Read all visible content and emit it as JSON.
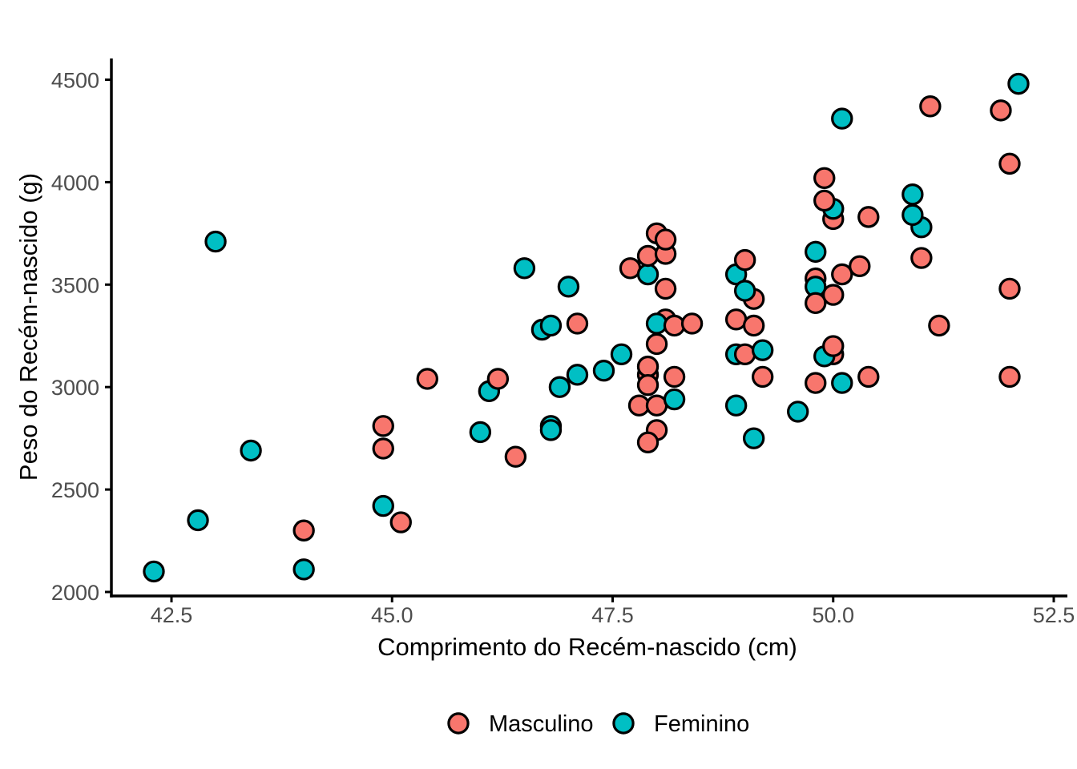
{
  "figure": {
    "background": "#FFFFFF"
  },
  "styles": {
    "tick_label_color": "#4D4D4D",
    "axis_color": "#000000",
    "title_color": "#000000",
    "marker_outline": "#000000"
  },
  "chart_data": {
    "type": "scatter",
    "title": "",
    "xlabel": "Comprimento do Recém-nascido (cm)",
    "ylabel": "Peso do Recém-nascido (g)",
    "x_tick_labels": [
      "42.5",
      "45.0",
      "47.5",
      "50.0",
      "52.5"
    ],
    "x_tick_values": [
      42.5,
      45.0,
      47.5,
      50.0,
      52.5
    ],
    "y_tick_labels": [
      "2000",
      "2500",
      "3000",
      "3500",
      "4000",
      "4500"
    ],
    "y_tick_values": [
      2000,
      2500,
      3000,
      3500,
      4000,
      4500
    ],
    "xlim": [
      41.8,
      52.7
    ],
    "ylim": [
      1980,
      4600
    ],
    "grid": "off",
    "legend_position": "bottom",
    "series": [
      {
        "key": "M",
        "name": "Masculino",
        "color": "#F8766D",
        "marker": "circle-black-outline"
      },
      {
        "key": "F",
        "name": "Feminino",
        "color": "#00BFC4",
        "marker": "circle-black-outline"
      }
    ],
    "points": [
      [
        42.3,
        2100,
        "F"
      ],
      [
        42.8,
        2350,
        "F"
      ],
      [
        43.0,
        3710,
        "F"
      ],
      [
        43.4,
        2690,
        "F"
      ],
      [
        44.0,
        2110,
        "F"
      ],
      [
        44.0,
        2300,
        "M"
      ],
      [
        44.9,
        2420,
        "F"
      ],
      [
        45.1,
        2340,
        "M"
      ],
      [
        44.9,
        2700,
        "M"
      ],
      [
        44.9,
        2810,
        "M"
      ],
      [
        45.4,
        3040,
        "M"
      ],
      [
        46.1,
        2980,
        "F"
      ],
      [
        46.2,
        3040,
        "M"
      ],
      [
        46.0,
        2780,
        "F"
      ],
      [
        46.4,
        2660,
        "M"
      ],
      [
        46.5,
        3580,
        "F"
      ],
      [
        47.0,
        3490,
        "F"
      ],
      [
        46.7,
        3280,
        "F"
      ],
      [
        46.8,
        3300,
        "F"
      ],
      [
        47.1,
        3310,
        "M"
      ],
      [
        46.8,
        2810,
        "F"
      ],
      [
        46.8,
        2790,
        "F"
      ],
      [
        46.9,
        3000,
        "F"
      ],
      [
        47.1,
        3060,
        "F"
      ],
      [
        47.4,
        3080,
        "F"
      ],
      [
        47.6,
        3160,
        "F"
      ],
      [
        47.7,
        3580,
        "M"
      ],
      [
        47.9,
        3550,
        "F"
      ],
      [
        47.9,
        3640,
        "M"
      ],
      [
        48.1,
        3650,
        "M"
      ],
      [
        48.0,
        3750,
        "M"
      ],
      [
        48.1,
        3720,
        "M"
      ],
      [
        48.1,
        3480,
        "M"
      ],
      [
        48.1,
        3330,
        "M"
      ],
      [
        48.0,
        3310,
        "F"
      ],
      [
        48.2,
        3300,
        "M"
      ],
      [
        48.4,
        3310,
        "M"
      ],
      [
        48.0,
        3210,
        "M"
      ],
      [
        47.9,
        3060,
        "M"
      ],
      [
        47.9,
        3100,
        "M"
      ],
      [
        48.2,
        3050,
        "M"
      ],
      [
        47.9,
        3010,
        "M"
      ],
      [
        47.8,
        2910,
        "M"
      ],
      [
        48.0,
        2910,
        "M"
      ],
      [
        48.2,
        2940,
        "F"
      ],
      [
        48.0,
        2790,
        "M"
      ],
      [
        47.9,
        2730,
        "M"
      ],
      [
        48.9,
        3550,
        "F"
      ],
      [
        49.0,
        3620,
        "M"
      ],
      [
        49.1,
        3430,
        "M"
      ],
      [
        49.0,
        3470,
        "F"
      ],
      [
        48.9,
        3330,
        "M"
      ],
      [
        49.1,
        3300,
        "M"
      ],
      [
        48.9,
        3160,
        "F"
      ],
      [
        49.0,
        3160,
        "M"
      ],
      [
        49.2,
        3180,
        "F"
      ],
      [
        49.2,
        3050,
        "M"
      ],
      [
        48.9,
        2910,
        "F"
      ],
      [
        49.1,
        2750,
        "F"
      ],
      [
        49.6,
        2880,
        "F"
      ],
      [
        49.8,
        3660,
        "F"
      ],
      [
        50.1,
        3550,
        "M"
      ],
      [
        50.3,
        3590,
        "M"
      ],
      [
        49.8,
        3530,
        "M"
      ],
      [
        50.0,
        3450,
        "M"
      ],
      [
        49.8,
        3490,
        "F"
      ],
      [
        49.8,
        3410,
        "M"
      ],
      [
        50.0,
        3160,
        "M"
      ],
      [
        49.9,
        3150,
        "F"
      ],
      [
        50.0,
        3200,
        "M"
      ],
      [
        49.8,
        3020,
        "M"
      ],
      [
        50.1,
        3020,
        "F"
      ],
      [
        50.4,
        3050,
        "M"
      ],
      [
        50.1,
        4310,
        "F"
      ],
      [
        49.9,
        4020,
        "M"
      ],
      [
        50.0,
        3820,
        "M"
      ],
      [
        50.0,
        3870,
        "F"
      ],
      [
        49.9,
        3910,
        "M"
      ],
      [
        50.4,
        3830,
        "M"
      ],
      [
        51.0,
        3780,
        "F"
      ],
      [
        50.9,
        3840,
        "F"
      ],
      [
        50.9,
        3940,
        "F"
      ],
      [
        51.0,
        3630,
        "M"
      ],
      [
        51.1,
        4370,
        "M"
      ],
      [
        51.2,
        3300,
        "M"
      ],
      [
        51.9,
        4350,
        "M"
      ],
      [
        52.0,
        4090,
        "M"
      ],
      [
        52.1,
        4480,
        "F"
      ],
      [
        52.0,
        3480,
        "M"
      ],
      [
        52.0,
        3050,
        "M"
      ]
    ]
  }
}
